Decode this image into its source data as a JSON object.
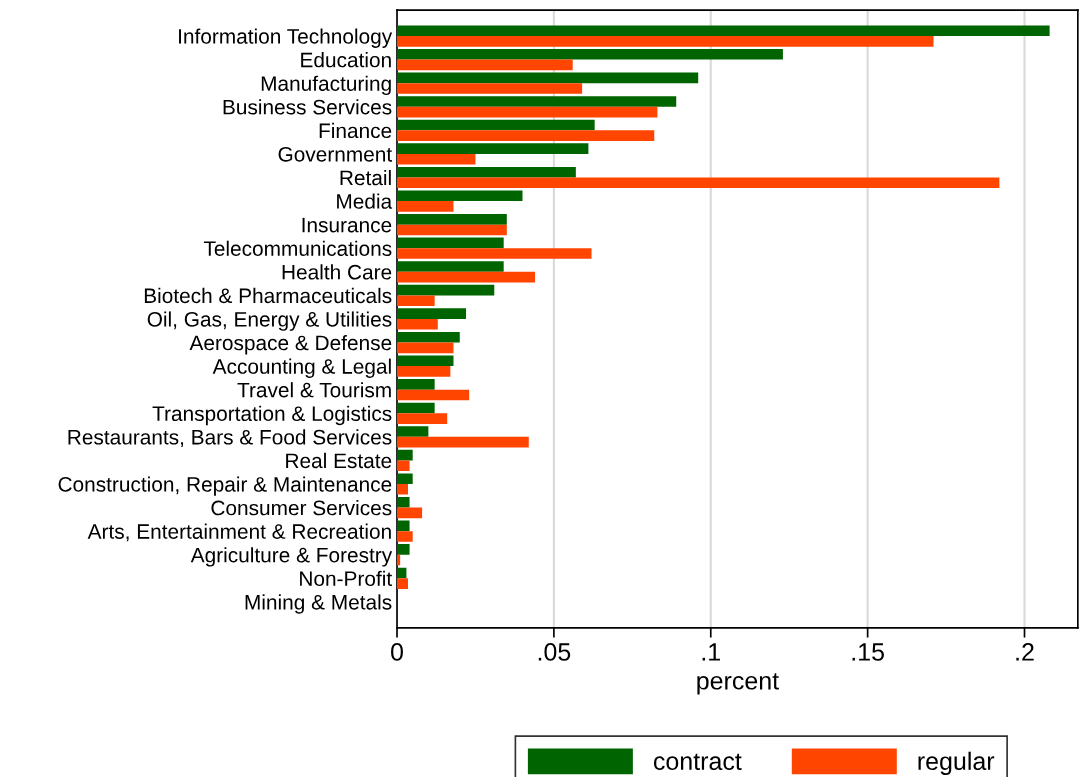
{
  "chart_data": {
    "type": "bar",
    "orientation": "horizontal",
    "xlabel": "percent",
    "categories": [
      "Information Technology",
      "Education",
      "Manufacturing",
      "Business Services",
      "Finance",
      "Government",
      "Retail",
      "Media",
      "Insurance",
      "Telecommunications",
      "Health Care",
      "Biotech & Pharmaceuticals",
      "Oil, Gas, Energy & Utilities",
      "Aerospace & Defense",
      "Accounting & Legal",
      "Travel & Tourism",
      "Transportation & Logistics",
      "Restaurants, Bars & Food Services",
      "Real Estate",
      "Construction, Repair & Maintenance",
      "Consumer Services",
      "Arts, Entertainment & Recreation",
      "Agriculture & Forestry",
      "Non-Profit",
      "Mining & Metals"
    ],
    "series": [
      {
        "name": "contract",
        "color": "#006400",
        "values": [
          0.208,
          0.123,
          0.096,
          0.089,
          0.063,
          0.061,
          0.057,
          0.04,
          0.035,
          0.034,
          0.034,
          0.031,
          0.022,
          0.02,
          0.018,
          0.012,
          0.012,
          0.01,
          0.005,
          0.005,
          0.004,
          0.004,
          0.004,
          0.003,
          0
        ]
      },
      {
        "name": "regular",
        "color": "#ff4500",
        "values": [
          0.171,
          0.056,
          0.059,
          0.083,
          0.082,
          0.025,
          0.192,
          0.018,
          0.035,
          0.062,
          0.044,
          0.012,
          0.013,
          0.018,
          0.017,
          0.023,
          0.016,
          0.042,
          0.004,
          0.0035,
          0.008,
          0.005,
          0.001,
          0.0035,
          0
        ]
      }
    ],
    "xlim": [
      0,
      0.217
    ],
    "xticks": [
      0,
      {
        "value": 0.05,
        "label": ".05"
      },
      {
        "value": 0.1,
        "label": ".1"
      },
      {
        "value": 0.15,
        "label": ".15"
      },
      {
        "value": 0.2,
        "label": ".2"
      }
    ],
    "grid": "x",
    "legend": "bottom"
  }
}
